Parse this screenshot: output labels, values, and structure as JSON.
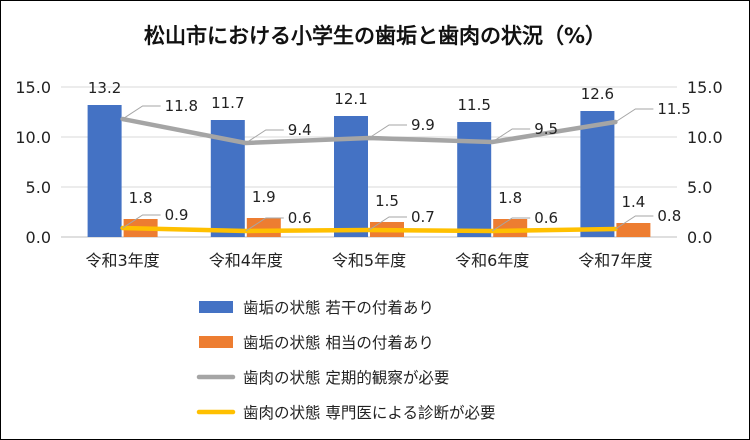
{
  "chart_data": {
    "type": "bar",
    "title": "松山市における小学生の歯垢と歯肉の状況（%）",
    "categories": [
      "令和3年度",
      "令和4年度",
      "令和5年度",
      "令和6年度",
      "令和7年度"
    ],
    "ylim": [
      0,
      15
    ],
    "yticks": [
      "0.0",
      "5.0",
      "10.0",
      "15.0"
    ],
    "grid": true,
    "legend_position": "bottom",
    "bar_series": [
      {
        "name": "歯垢の状態 若干の付着あり",
        "values": [
          13.2,
          11.7,
          12.1,
          11.5,
          12.6
        ],
        "labels": [
          "13.2",
          "11.7",
          "12.1",
          "11.5",
          "12.6"
        ],
        "color": "#4472C4"
      },
      {
        "name": "歯垢の状態 相当の付着あり",
        "values": [
          1.8,
          1.9,
          1.5,
          1.8,
          1.4
        ],
        "labels": [
          "1.8",
          "1.9",
          "1.5",
          "1.8",
          "1.4"
        ],
        "color": "#ED7D31"
      }
    ],
    "line_series": [
      {
        "name": "歯肉の状態 定期的観察が必要",
        "values": [
          11.8,
          9.4,
          9.9,
          9.5,
          11.5
        ],
        "labels": [
          "11.8",
          "9.4",
          "9.9",
          "9.5",
          "11.5"
        ],
        "color": "#A5A5A5"
      },
      {
        "name": "歯肉の状態 専門医による診断が必要",
        "values": [
          0.9,
          0.6,
          0.7,
          0.6,
          0.8
        ],
        "labels": [
          "0.9",
          "0.6",
          "0.7",
          "0.6",
          "0.8"
        ],
        "color": "#FFC000"
      }
    ]
  }
}
